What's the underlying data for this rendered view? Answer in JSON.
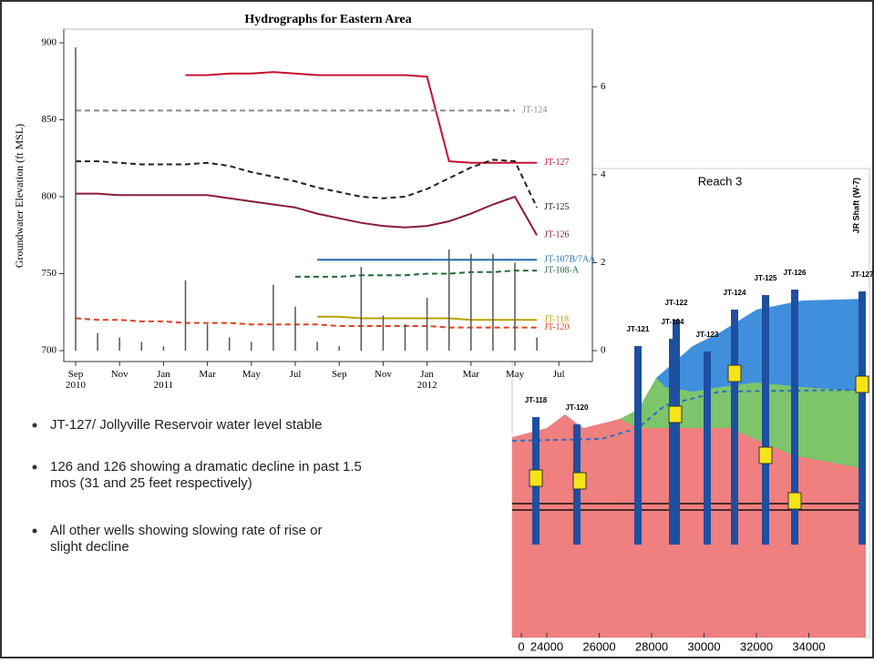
{
  "chart_data": {
    "type": "line",
    "title": "Hydrographs for Eastern Area",
    "y_label": "Groundwater Elevation (ft MSL)",
    "x": [
      "2010-09",
      "2010-10",
      "2010-11",
      "2010-12",
      "2011-01",
      "2011-02",
      "2011-03",
      "2011-04",
      "2011-05",
      "2011-06",
      "2011-07",
      "2011-08",
      "2011-09",
      "2011-10",
      "2011-11",
      "2011-12",
      "2012-01",
      "2012-02",
      "2012-03",
      "2012-04",
      "2012-05",
      "2012-06",
      "2012-07"
    ],
    "xticks": [
      {
        "value": "2010-09",
        "label": "Sep 2010"
      },
      {
        "value": "2010-11",
        "label": "Nov"
      },
      {
        "value": "2011-01",
        "label": "Jan 2011"
      },
      {
        "value": "2011-03",
        "label": "Mar"
      },
      {
        "value": "2011-05",
        "label": "May"
      },
      {
        "value": "2011-07",
        "label": "Jul"
      },
      {
        "value": "2011-09",
        "label": "Sep"
      },
      {
        "value": "2011-11",
        "label": "Nov"
      },
      {
        "value": "2012-01",
        "label": "Jan 2012"
      },
      {
        "value": "2012-03",
        "label": "Mar"
      },
      {
        "value": "2012-05",
        "label": "May"
      },
      {
        "value": "2012-07",
        "label": "Jul"
      }
    ],
    "ylim": [
      700,
      900
    ],
    "yticks": [
      700,
      750,
      800,
      850,
      900
    ],
    "y2lim": [
      0,
      7
    ],
    "y2ticks": [
      0,
      2,
      4,
      6
    ],
    "series": [
      {
        "name": "JT-127",
        "color": "#c8102e",
        "dash": false,
        "values": [
          null,
          null,
          null,
          null,
          null,
          879,
          879,
          880,
          880,
          881,
          880,
          879,
          879,
          879,
          879,
          879,
          878,
          823,
          822,
          822,
          822,
          822,
          null
        ]
      },
      {
        "name": "JT-124",
        "color": "#8a8a8a",
        "dash": true,
        "values": [
          856,
          856,
          856,
          856,
          856,
          856,
          856,
          856,
          856,
          856,
          856,
          856,
          856,
          856,
          856,
          856,
          856,
          856,
          856,
          856,
          856,
          null,
          null
        ]
      },
      {
        "name": "JT-125",
        "color": "#222222",
        "dash": true,
        "values": [
          823,
          823,
          822,
          821,
          821,
          821,
          822,
          820,
          816,
          813,
          810,
          806,
          803,
          800,
          799,
          800,
          805,
          812,
          819,
          824,
          823,
          793,
          null
        ]
      },
      {
        "name": "JT-126",
        "color": "#8b1a3a",
        "dash": false,
        "values": [
          802,
          802,
          801,
          801,
          801,
          801,
          801,
          799,
          797,
          795,
          793,
          789,
          786,
          783,
          781,
          780,
          781,
          784,
          789,
          795,
          800,
          775,
          null
        ]
      },
      {
        "name": "JT-107B/7AA",
        "color": "#1f6fb4",
        "dash": false,
        "values": [
          null,
          null,
          null,
          null,
          null,
          null,
          null,
          null,
          null,
          null,
          null,
          759,
          759,
          759,
          759,
          759,
          759,
          759,
          759,
          759,
          759,
          759,
          null
        ]
      },
      {
        "name": "JT-108-A",
        "color": "#1f6b3a",
        "dash": true,
        "values": [
          null,
          null,
          null,
          null,
          null,
          null,
          null,
          null,
          null,
          null,
          748,
          748,
          748,
          749,
          749,
          749,
          750,
          750,
          751,
          751,
          752,
          752,
          null
        ]
      },
      {
        "name": "JT-118",
        "color": "#b5a300",
        "dash": false,
        "values": [
          null,
          null,
          null,
          null,
          null,
          null,
          null,
          null,
          null,
          null,
          null,
          722,
          722,
          721,
          721,
          721,
          721,
          721,
          720,
          720,
          720,
          720,
          null
        ]
      },
      {
        "name": "JT-120",
        "color": "#e0401c",
        "dash": true,
        "values": [
          721,
          720,
          720,
          719,
          719,
          718,
          718,
          718,
          717,
          717,
          717,
          717,
          716,
          716,
          716,
          716,
          716,
          715,
          715,
          715,
          715,
          715,
          null
        ]
      },
      {
        "color": "#555555",
        "axis": "y2",
        "bars": true,
        "values": [
          6.9,
          0.4,
          0.3,
          0.2,
          0.1,
          1.6,
          0.6,
          0.3,
          0.2,
          1.5,
          1.0,
          0.2,
          0.1,
          1.9,
          0.8,
          0.6,
          1.2,
          2.3,
          2.2,
          2.2,
          2.0,
          0.3,
          null
        ]
      }
    ]
  },
  "bullets": [
    "JT-127/ Jollyville Reservoir water level stable",
    "126 and 126 showing a dramatic decline in past 1.5 mos (31 and 25 feet respectively)",
    "All other wells showing slowing rate of rise or slight decline"
  ],
  "cross_section": {
    "title": "Reach 3",
    "shaft_label": "JR Shaft (W-7)",
    "wells": [
      "JT-118",
      "JT-120",
      "JT-121",
      "JT-122",
      "JT-104",
      "JT-123",
      "JT-124",
      "JT-125",
      "JT-126",
      "JT-127"
    ],
    "xticks": [
      0,
      24000,
      26000,
      28000,
      30000,
      32000,
      34000
    ]
  }
}
